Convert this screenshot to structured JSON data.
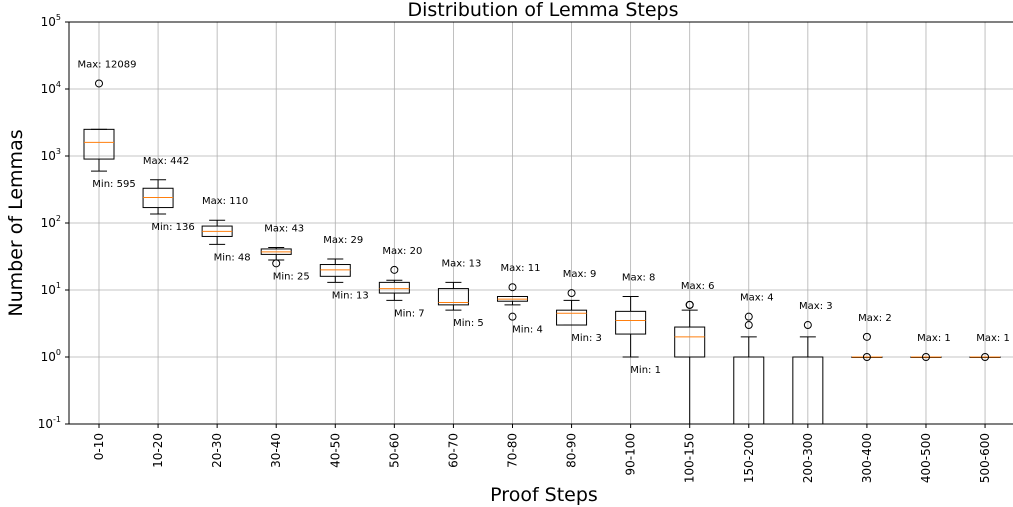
{
  "chart_data": {
    "type": "box",
    "title": "Distribution of Lemma Steps",
    "xlabel": "Proof Steps",
    "ylabel": "Number of Lemmas",
    "yscale": "log",
    "ylim": [
      0.1,
      100000
    ],
    "grid": true,
    "median_color": "#ff7f0e",
    "categories": [
      "0-10",
      "10-20",
      "20-30",
      "30-40",
      "40-50",
      "50-60",
      "60-70",
      "70-80",
      "80-90",
      "90-100",
      "100-150",
      "150-200",
      "200-300",
      "300-400",
      "400-500",
      "500-600"
    ],
    "boxes": [
      {
        "q1": 900,
        "median": 1600,
        "q3": 2500,
        "whisker_low": 595,
        "whisker_high": 2500,
        "fliers": [
          12089
        ]
      },
      {
        "q1": 170,
        "median": 240,
        "q3": 330,
        "whisker_low": 136,
        "whisker_high": 442,
        "fliers": []
      },
      {
        "q1": 63,
        "median": 75,
        "q3": 90,
        "whisker_low": 48,
        "whisker_high": 110,
        "fliers": []
      },
      {
        "q1": 34,
        "median": 37,
        "q3": 41,
        "whisker_low": 28,
        "whisker_high": 43,
        "fliers": [
          25
        ]
      },
      {
        "q1": 16,
        "median": 20,
        "q3": 24,
        "whisker_low": 13,
        "whisker_high": 29,
        "fliers": []
      },
      {
        "q1": 9,
        "median": 10.5,
        "q3": 13,
        "whisker_low": 7,
        "whisker_high": 14,
        "fliers": [
          20
        ]
      },
      {
        "q1": 6,
        "median": 6.5,
        "q3": 10.5,
        "whisker_low": 5,
        "whisker_high": 13,
        "fliers": []
      },
      {
        "q1": 6.8,
        "median": 7.3,
        "q3": 8,
        "whisker_low": 6,
        "whisker_high": 8,
        "fliers": [
          11,
          4
        ]
      },
      {
        "q1": 3,
        "median": 4.5,
        "q3": 5,
        "whisker_low": 3,
        "whisker_high": 7,
        "fliers": [
          9
        ]
      },
      {
        "q1": 2.2,
        "median": 3.5,
        "q3": 4.8,
        "whisker_low": 1,
        "whisker_high": 8,
        "fliers": []
      },
      {
        "q1": 1,
        "median": 2,
        "q3": 2.8,
        "whisker_low": 0.1,
        "whisker_high": 5,
        "fliers": [
          6,
          6
        ]
      },
      {
        "q1": 0.1,
        "median": 0.1,
        "q3": 1,
        "whisker_low": 0.1,
        "whisker_high": 2,
        "fliers": [
          3,
          4
        ]
      },
      {
        "q1": 0.1,
        "median": 0.1,
        "q3": 1,
        "whisker_low": 0.1,
        "whisker_high": 2,
        "fliers": [
          3
        ]
      },
      {
        "q1": 1,
        "median": 1,
        "q3": 1,
        "whisker_low": 1,
        "whisker_high": 1,
        "fliers": [
          2,
          1
        ]
      },
      {
        "q1": 1,
        "median": 1,
        "q3": 1,
        "whisker_low": 1,
        "whisker_high": 1,
        "fliers": [
          1
        ]
      },
      {
        "q1": 1,
        "median": 1,
        "q3": 1,
        "whisker_low": 1,
        "whisker_high": 1,
        "fliers": [
          1
        ]
      }
    ],
    "annotations": [
      {
        "cat": 0,
        "max_label": "Max: 12089",
        "max_value": 12089,
        "min_label": "Min: 595",
        "min_value": 595
      },
      {
        "cat": 1,
        "max_label": "Max: 442",
        "max_value": 442,
        "min_label": "Min: 136",
        "min_value": 136
      },
      {
        "cat": 2,
        "max_label": "Max: 110",
        "max_value": 110,
        "min_label": "Min: 48",
        "min_value": 48
      },
      {
        "cat": 3,
        "max_label": "Max: 43",
        "max_value": 43,
        "min_label": "Min: 25",
        "min_value": 25
      },
      {
        "cat": 4,
        "max_label": "Max: 29",
        "max_value": 29,
        "min_label": "Min: 13",
        "min_value": 13
      },
      {
        "cat": 5,
        "max_label": "Max: 20",
        "max_value": 20,
        "min_label": "Min: 7",
        "min_value": 7
      },
      {
        "cat": 6,
        "max_label": "Max: 13",
        "max_value": 13,
        "min_label": "Min: 5",
        "min_value": 5
      },
      {
        "cat": 7,
        "max_label": "Max: 11",
        "max_value": 11,
        "min_label": "Min: 4",
        "min_value": 4
      },
      {
        "cat": 8,
        "max_label": "Max: 9",
        "max_value": 9,
        "min_label": "Min: 3",
        "min_value": 3
      },
      {
        "cat": 9,
        "max_label": "Max: 8",
        "max_value": 8,
        "min_label": "Min: 1",
        "min_value": 1
      },
      {
        "cat": 10,
        "max_label": "Max: 6",
        "max_value": 6,
        "min_label": "",
        "min_value": null
      },
      {
        "cat": 11,
        "max_label": "Max: 4",
        "max_value": 4,
        "min_label": "",
        "min_value": null
      },
      {
        "cat": 12,
        "max_label": "Max: 3",
        "max_value": 3,
        "min_label": "",
        "min_value": null
      },
      {
        "cat": 13,
        "max_label": "Max: 2",
        "max_value": 2,
        "min_label": "",
        "min_value": null
      },
      {
        "cat": 14,
        "max_label": "Max: 1",
        "max_value": 1,
        "min_label": "",
        "min_value": null
      },
      {
        "cat": 15,
        "max_label": "Max: 1",
        "max_value": 1,
        "min_label": "",
        "min_value": null
      }
    ]
  }
}
